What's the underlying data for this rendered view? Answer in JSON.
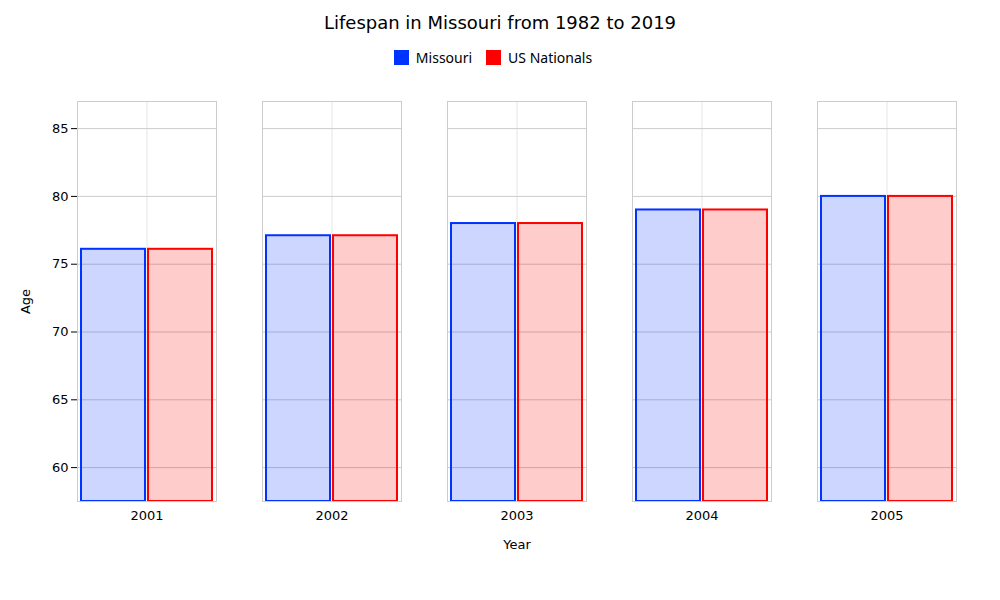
{
  "chart_data": {
    "type": "bar",
    "title": "Lifespan in Missouri from 1982 to 2019",
    "x_label": "Year",
    "y_label": "Age",
    "categories": [
      "2001",
      "2002",
      "2003",
      "2004",
      "2005"
    ],
    "series": [
      {
        "name": "Missouri",
        "color": "#0033ff",
        "values": [
          76.1,
          77.1,
          78.0,
          79.0,
          80.0
        ]
      },
      {
        "name": "US Nationals",
        "color": "#ff0000",
        "values": [
          76.1,
          77.1,
          78.0,
          79.0,
          80.0
        ]
      }
    ],
    "ylim": [
      57.5,
      87
    ],
    "yticks": [
      60,
      65,
      70,
      75,
      80,
      85
    ],
    "grid": true,
    "legend": "top"
  }
}
